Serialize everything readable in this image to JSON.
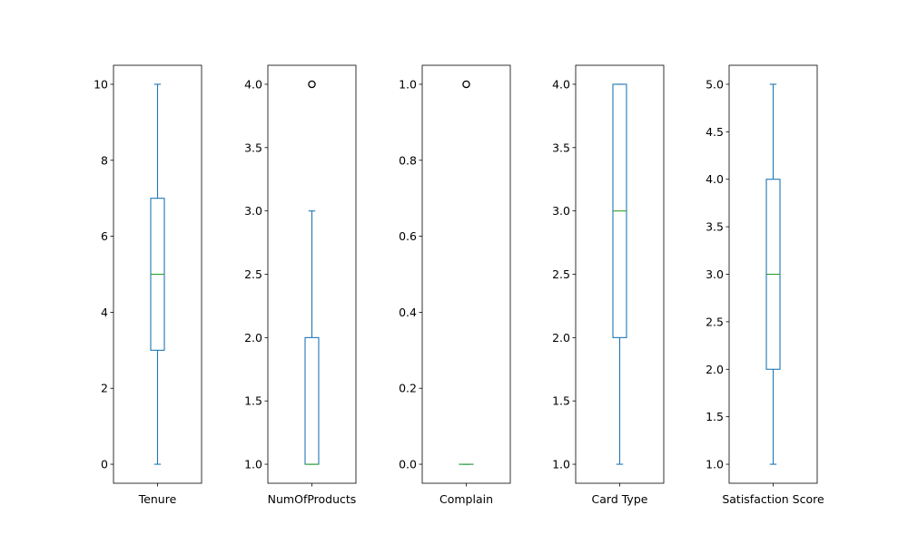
{
  "chart_data": {
    "type": "box",
    "grid": false,
    "colors": {
      "box": "#1f77b4",
      "median": "#2ca02c",
      "flier": "#000000",
      "frame": "#000000"
    },
    "subplots": [
      {
        "xlabel": "Tenure",
        "ylim": [
          -0.5,
          10.5
        ],
        "yticks": [
          0,
          2,
          4,
          6,
          8,
          10
        ],
        "ytick_labels": [
          "0",
          "2",
          "4",
          "6",
          "8",
          "10"
        ],
        "box": {
          "whislo": 0,
          "q1": 3,
          "median": 5,
          "q3": 7,
          "whishi": 10
        },
        "fliers": []
      },
      {
        "xlabel": "NumOfProducts",
        "ylim": [
          0.85,
          4.15
        ],
        "yticks": [
          1.0,
          1.5,
          2.0,
          2.5,
          3.0,
          3.5,
          4.0
        ],
        "ytick_labels": [
          "1.0",
          "1.5",
          "2.0",
          "2.5",
          "3.0",
          "3.5",
          "4.0"
        ],
        "box": {
          "whislo": 1,
          "q1": 1,
          "median": 1,
          "q3": 2,
          "whishi": 3
        },
        "fliers": [
          4
        ]
      },
      {
        "xlabel": "Complain",
        "ylim": [
          -0.05,
          1.05
        ],
        "yticks": [
          0.0,
          0.2,
          0.4,
          0.6,
          0.8,
          1.0
        ],
        "ytick_labels": [
          "0.0",
          "0.2",
          "0.4",
          "0.6",
          "0.8",
          "1.0"
        ],
        "box": {
          "whislo": 0,
          "q1": 0,
          "median": 0,
          "q3": 0,
          "whishi": 0
        },
        "fliers": [
          1
        ]
      },
      {
        "xlabel": "Card Type",
        "ylim": [
          0.85,
          4.15
        ],
        "yticks": [
          1.0,
          1.5,
          2.0,
          2.5,
          3.0,
          3.5,
          4.0
        ],
        "ytick_labels": [
          "1.0",
          "1.5",
          "2.0",
          "2.5",
          "3.0",
          "3.5",
          "4.0"
        ],
        "box": {
          "whislo": 1,
          "q1": 2,
          "median": 3,
          "q3": 4,
          "whishi": 4
        },
        "fliers": []
      },
      {
        "xlabel": "Satisfaction Score",
        "ylim": [
          0.8,
          5.2
        ],
        "yticks": [
          1.0,
          1.5,
          2.0,
          2.5,
          3.0,
          3.5,
          4.0,
          4.5,
          5.0
        ],
        "ytick_labels": [
          "1.0",
          "1.5",
          "2.0",
          "2.5",
          "3.0",
          "3.5",
          "4.0",
          "4.5",
          "5.0"
        ],
        "box": {
          "whislo": 1,
          "q1": 2,
          "median": 3,
          "q3": 4,
          "whishi": 5
        },
        "fliers": []
      }
    ]
  }
}
